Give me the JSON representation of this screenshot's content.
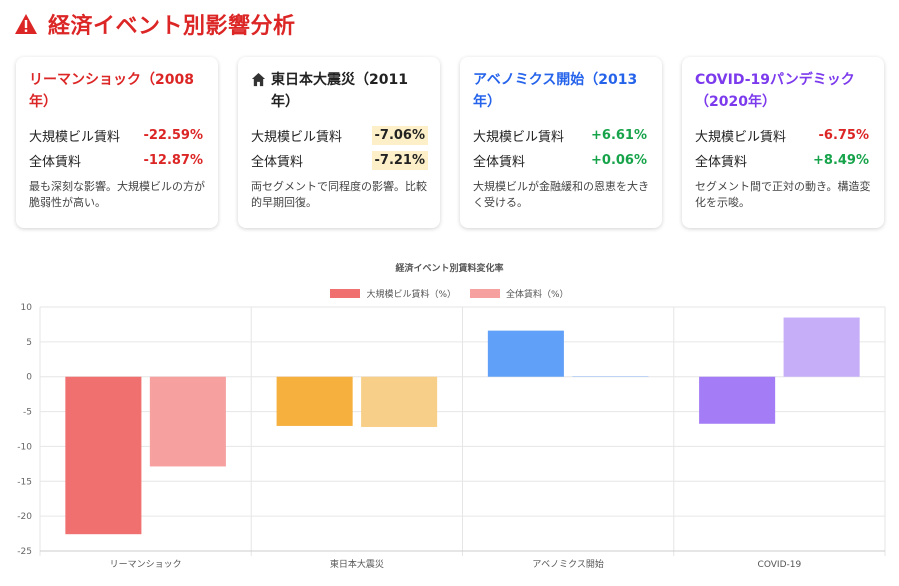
{
  "page": {
    "title": "経済イベント別影響分析"
  },
  "cards": [
    {
      "title": "リーマンショック（2008年）",
      "title_color": "#dc2626",
      "icon": "",
      "metrics": [
        {
          "label": "大規模ビル賃料",
          "value": "-22.59%",
          "color": "#dc2626",
          "highlight": false
        },
        {
          "label": "全体賃料",
          "value": "-12.87%",
          "color": "#dc2626",
          "highlight": false
        }
      ],
      "description": "最も深刻な影響。大規模ビルの方が脆弱性が高い。"
    },
    {
      "title": "東日本大震災（2011年）",
      "title_color": "#222222",
      "icon": "home-icon",
      "metrics": [
        {
          "label": "大規模ビル賃料",
          "value": "-7.06%",
          "color": "#222222",
          "highlight": true
        },
        {
          "label": "全体賃料",
          "value": "-7.21%",
          "color": "#222222",
          "highlight": true
        }
      ],
      "description": "両セグメントで同程度の影響。比較的早期回復。"
    },
    {
      "title": "アベノミクス開始（2013年）",
      "title_color": "#2563eb",
      "icon": "",
      "metrics": [
        {
          "label": "大規模ビル賃料",
          "value": "+6.61%",
          "color": "#16a34a",
          "highlight": false
        },
        {
          "label": "全体賃料",
          "value": "+0.06%",
          "color": "#16a34a",
          "highlight": false
        }
      ],
      "description": "大規模ビルが金融緩和の恩恵を大きく受ける。"
    },
    {
      "title": "COVID-19パンデミック（2020年）",
      "title_color": "#7c3aed",
      "icon": "",
      "metrics": [
        {
          "label": "大規模ビル賃料",
          "value": "-6.75%",
          "color": "#dc2626",
          "highlight": false
        },
        {
          "label": "全体賃料",
          "value": "+8.49%",
          "color": "#16a34a",
          "highlight": false
        }
      ],
      "description": "セグメント間で正対の動き。構造変化を示唆。"
    }
  ],
  "chart_data": {
    "type": "bar",
    "title": "経済イベント別賃料変化率",
    "categories": [
      "リーマンショック",
      "東日本大震災",
      "アベノミクス開始",
      "COVID-19"
    ],
    "series": [
      {
        "name": "大規模ビル賃料（%）",
        "values": [
          -22.59,
          -7.06,
          6.61,
          -6.75
        ],
        "colors": [
          "#f07070",
          "#f6b03e",
          "#60a0f8",
          "#a37cf6"
        ]
      },
      {
        "name": "全体賃料（%）",
        "values": [
          -12.87,
          -7.21,
          0.06,
          8.49
        ],
        "colors": [
          "#f6a0a0",
          "#f8cf88",
          "#9fc2f8",
          "#c6aef8"
        ]
      }
    ],
    "legend_colors": [
      "#f07070",
      "#f6a0a0"
    ],
    "ylim": [
      -25,
      10
    ],
    "yticks": [
      10,
      5,
      0,
      -5,
      -10,
      -15,
      -20,
      -25
    ],
    "grid": true,
    "legend_position": "top"
  },
  "colors": {
    "accent": "#dc2626",
    "highlight_bg": "#fdf0c8"
  }
}
